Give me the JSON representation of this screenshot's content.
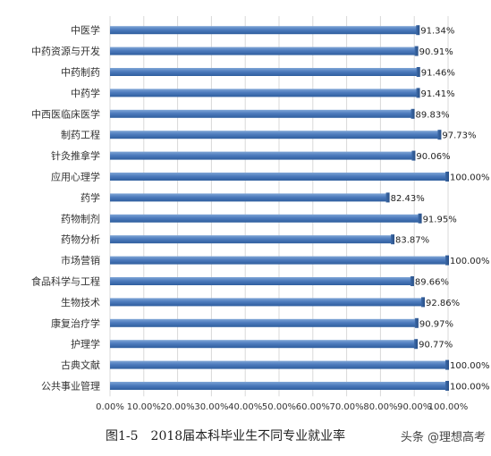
{
  "chart_data": {
    "type": "bar",
    "orientation": "horizontal",
    "categories": [
      "中医学",
      "中药资源与开发",
      "中药制药",
      "中药学",
      "中西医临床医学",
      "制药工程",
      "针灸推拿学",
      "应用心理学",
      "药学",
      "药物制剂",
      "药物分析",
      "市场营销",
      "食品科学与工程",
      "生物技术",
      "康复治疗学",
      "护理学",
      "古典文献",
      "公共事业管理"
    ],
    "values": [
      91.34,
      90.91,
      91.46,
      91.41,
      89.83,
      97.73,
      90.06,
      100.0,
      82.43,
      91.95,
      83.87,
      100.0,
      89.66,
      92.86,
      90.97,
      90.77,
      100.0,
      100.0
    ],
    "data_labels": [
      "91.34%",
      "90.91%",
      "91.46%",
      "91.41%",
      "89.83%",
      "97.73%",
      "90.06%",
      "100.00%",
      "82.43%",
      "91.95%",
      "83.87%",
      "100.00%",
      "89.66%",
      "92.86%",
      "90.97%",
      "90.77%",
      "100.00%",
      "100.00%"
    ],
    "xlim": [
      0,
      100
    ],
    "x_ticks": [
      "0.00%",
      "10.00%",
      "20.00%",
      "30.00%",
      "40.00%",
      "50.00%",
      "60.00%",
      "70.00%",
      "80.00%",
      "90.00%",
      "100.00%"
    ],
    "grid": true,
    "bar_color": "#4a78b8"
  },
  "caption": "图1-5　2018届本科毕业生不同专业就业率",
  "watermark": "头条 @理想高考"
}
